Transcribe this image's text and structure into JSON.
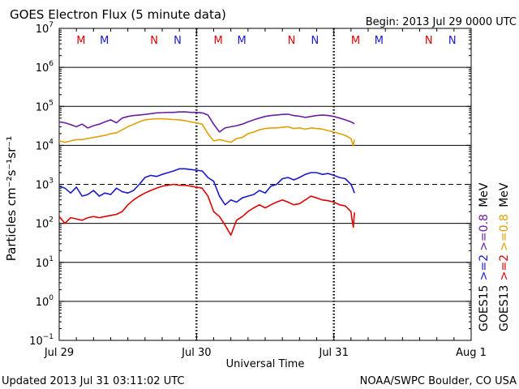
{
  "chart_data": {
    "type": "line",
    "title": "GOES Electron Flux (5 minute data)",
    "begin_label": "Begin: 2013 Jul 29 0000 UTC",
    "updated_label": "Updated 2013 Jul 31 03:11:02 UTC",
    "credit_label": "NOAA/SWPC Boulder, CO USA",
    "xlabel": "Universal Time",
    "ylabel": "Particles cm⁻²s⁻¹sr⁻¹",
    "y_scale": "log",
    "ylim": [
      0.1,
      10000000
    ],
    "xlim": [
      0,
      72
    ],
    "x_ticks": [
      {
        "hour": 0,
        "label": "Jul 29"
      },
      {
        "hour": 24,
        "label": "Jul 30"
      },
      {
        "hour": 48,
        "label": "Jul 31"
      },
      {
        "hour": 72,
        "label": "Aug 1"
      }
    ],
    "y_ticks": [
      {
        "value": 0.1,
        "base": "10",
        "exp": "−1"
      },
      {
        "value": 1,
        "base": "10",
        "exp": "0"
      },
      {
        "value": 10,
        "base": "10",
        "exp": "1"
      },
      {
        "value": 100,
        "base": "10",
        "exp": "2"
      },
      {
        "value": 1000,
        "base": "10",
        "exp": "3"
      },
      {
        "value": 10000,
        "base": "10",
        "exp": "4"
      },
      {
        "value": 100000,
        "base": "10",
        "exp": "5"
      },
      {
        "value": 1000000,
        "base": "10",
        "exp": "6"
      },
      {
        "value": 10000000,
        "base": "10",
        "exp": "7"
      }
    ],
    "threshold": 1000,
    "day_markers": [
      {
        "hour": 3.8,
        "label": "M",
        "color": "#e00000"
      },
      {
        "hour": 7.9,
        "label": "M",
        "color": "#1a1acc"
      },
      {
        "hour": 16.6,
        "label": "N",
        "color": "#e00000"
      },
      {
        "hour": 20.7,
        "label": "N",
        "color": "#1a1acc"
      },
      {
        "hour": 27.8,
        "label": "M",
        "color": "#e00000"
      },
      {
        "hour": 31.9,
        "label": "M",
        "color": "#1a1acc"
      },
      {
        "hour": 40.6,
        "label": "N",
        "color": "#e00000"
      },
      {
        "hour": 44.7,
        "label": "N",
        "color": "#1a1acc"
      },
      {
        "hour": 51.8,
        "label": "M",
        "color": "#e00000"
      },
      {
        "hour": 55.9,
        "label": "M",
        "color": "#1a1acc"
      },
      {
        "hour": 64.6,
        "label": "N",
        "color": "#e00000"
      },
      {
        "hour": 68.7,
        "label": "N",
        "color": "#1a1acc"
      }
    ],
    "legend_position": "right-vertical",
    "legend_columns": [
      {
        "label": "GOES15",
        "color": "#000000"
      },
      {
        "label": ">=2",
        "color": "#1a1acc"
      },
      {
        "label": ">=0.8",
        "color": "#6a1fa0"
      },
      {
        "label": "MeV",
        "color": "#000000"
      },
      {
        "label": "GOES13",
        "color": "#000000"
      },
      {
        "label": ">=2",
        "color": "#e00000"
      },
      {
        "label": ">=0.8",
        "color": "#e0a000"
      },
      {
        "label": "MeV",
        "color": "#000000"
      }
    ],
    "series": [
      {
        "name": "GOES15 >=0.8 MeV",
        "color": "#6a1fa0",
        "x": [
          0,
          1,
          2,
          3,
          4,
          5,
          6,
          7,
          8,
          9,
          10,
          11,
          12,
          13,
          14,
          15,
          16,
          17,
          18,
          19,
          20,
          21,
          22,
          23,
          24,
          25,
          26,
          27,
          28,
          29,
          30,
          31,
          32,
          33,
          34,
          35,
          36,
          37,
          38,
          39,
          40,
          41,
          42,
          43,
          44,
          45,
          46,
          47,
          48,
          49,
          50,
          51,
          51.3,
          51.6
        ],
        "y": [
          40000,
          38000,
          34000,
          30000,
          35000,
          28000,
          32000,
          35000,
          40000,
          45000,
          38000,
          50000,
          55000,
          58000,
          60000,
          62000,
          65000,
          68000,
          69000,
          70000,
          70000,
          72000,
          72000,
          70000,
          70000,
          68000,
          60000,
          35000,
          22000,
          28000,
          30000,
          32000,
          35000,
          40000,
          45000,
          50000,
          55000,
          58000,
          60000,
          62000,
          63000,
          58000,
          56000,
          52000,
          55000,
          58000,
          60000,
          58000,
          55000,
          50000,
          45000,
          40000,
          38000,
          36000
        ]
      },
      {
        "name": "GOES13 >=0.8 MeV",
        "color": "#e0a000",
        "x": [
          0,
          1,
          2,
          3,
          4,
          5,
          6,
          7,
          8,
          9,
          10,
          11,
          12,
          13,
          14,
          15,
          16,
          17,
          18,
          19,
          20,
          21,
          22,
          23,
          24,
          25,
          26,
          27,
          28,
          29,
          30,
          31,
          32,
          33,
          34,
          35,
          36,
          37,
          38,
          39,
          40,
          41,
          42,
          43,
          44,
          45,
          46,
          47,
          48,
          49,
          50,
          51,
          51.2,
          51.4,
          51.6
        ],
        "y": [
          13000,
          12000,
          13000,
          14000,
          14000,
          15000,
          16000,
          17000,
          18000,
          20000,
          21000,
          25000,
          30000,
          35000,
          40000,
          45000,
          47000,
          48000,
          48000,
          47000,
          46000,
          45000,
          43000,
          40000,
          38000,
          35000,
          20000,
          13000,
          14000,
          13000,
          12000,
          15000,
          16000,
          20000,
          22000,
          25000,
          27000,
          28000,
          28000,
          29000,
          30000,
          27000,
          28000,
          26000,
          28000,
          27000,
          26000,
          24000,
          22000,
          20000,
          18000,
          15000,
          12000,
          10000,
          14000
        ]
      },
      {
        "name": "GOES15 >=2 MeV",
        "color": "#1a1acc",
        "x": [
          0,
          1,
          2,
          3,
          4,
          5,
          6,
          7,
          8,
          9,
          10,
          11,
          12,
          13,
          14,
          15,
          16,
          17,
          18,
          19,
          20,
          21,
          22,
          23,
          24,
          25,
          26,
          27,
          28,
          29,
          30,
          31,
          32,
          33,
          34,
          35,
          36,
          37,
          38,
          39,
          40,
          41,
          42,
          43,
          44,
          45,
          46,
          47,
          48,
          49,
          50,
          51,
          51.3,
          51.6
        ],
        "y": [
          900,
          800,
          600,
          850,
          500,
          550,
          700,
          500,
          600,
          550,
          800,
          650,
          600,
          700,
          1000,
          1500,
          1700,
          1600,
          1800,
          2000,
          2200,
          2500,
          2500,
          2400,
          2300,
          2200,
          1500,
          1200,
          500,
          300,
          400,
          350,
          450,
          500,
          550,
          700,
          600,
          900,
          1000,
          1400,
          1500,
          1300,
          1500,
          1800,
          2000,
          2000,
          1800,
          1900,
          1700,
          1500,
          1400,
          1000,
          800,
          600
        ]
      },
      {
        "name": "GOES13 >=2 MeV",
        "color": "#e00000",
        "x": [
          0,
          1,
          2,
          3,
          4,
          5,
          6,
          7,
          8,
          9,
          10,
          11,
          12,
          13,
          14,
          15,
          16,
          17,
          18,
          19,
          20,
          21,
          22,
          23,
          24,
          25,
          26,
          27,
          28,
          29,
          30,
          31,
          32,
          33,
          34,
          35,
          36,
          37,
          38,
          39,
          40,
          41,
          42,
          43,
          44,
          45,
          46,
          47,
          48,
          49,
          50,
          51,
          51.2,
          51.4,
          51.6
        ],
        "y": [
          150,
          100,
          140,
          130,
          120,
          140,
          150,
          140,
          150,
          160,
          170,
          200,
          300,
          400,
          500,
          600,
          700,
          800,
          900,
          950,
          1000,
          950,
          950,
          900,
          850,
          800,
          500,
          200,
          150,
          90,
          50,
          120,
          150,
          200,
          250,
          300,
          250,
          300,
          350,
          400,
          350,
          300,
          320,
          400,
          500,
          450,
          400,
          380,
          350,
          300,
          280,
          200,
          120,
          80,
          190
        ]
      }
    ]
  }
}
